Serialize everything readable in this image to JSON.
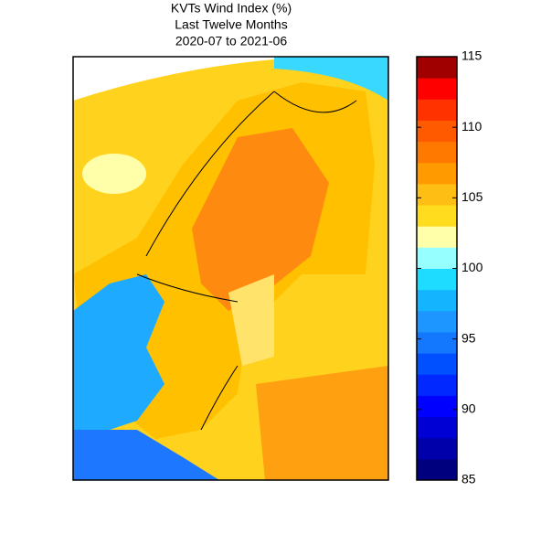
{
  "title": [
    "KVTs Wind Index (%)",
    "Last Twelve Months",
    "2020-07 to 2021-06"
  ],
  "colorbar": {
    "lim": [
      85,
      115
    ],
    "ticks": [
      85,
      90,
      95,
      100,
      105,
      110,
      115
    ],
    "colors": [
      "#00007f",
      "#0000aa",
      "#0000d4",
      "#0000ff",
      "#0028ff",
      "#0050ff",
      "#1478ff",
      "#1e96ff",
      "#14b4ff",
      "#1edcff",
      "#96ffff",
      "#ffffaa",
      "#ffdc1e",
      "#ffbe14",
      "#ff9b00",
      "#ff7800",
      "#ff5a00",
      "#ff3200",
      "#ff0000",
      "#a00000"
    ]
  }
}
